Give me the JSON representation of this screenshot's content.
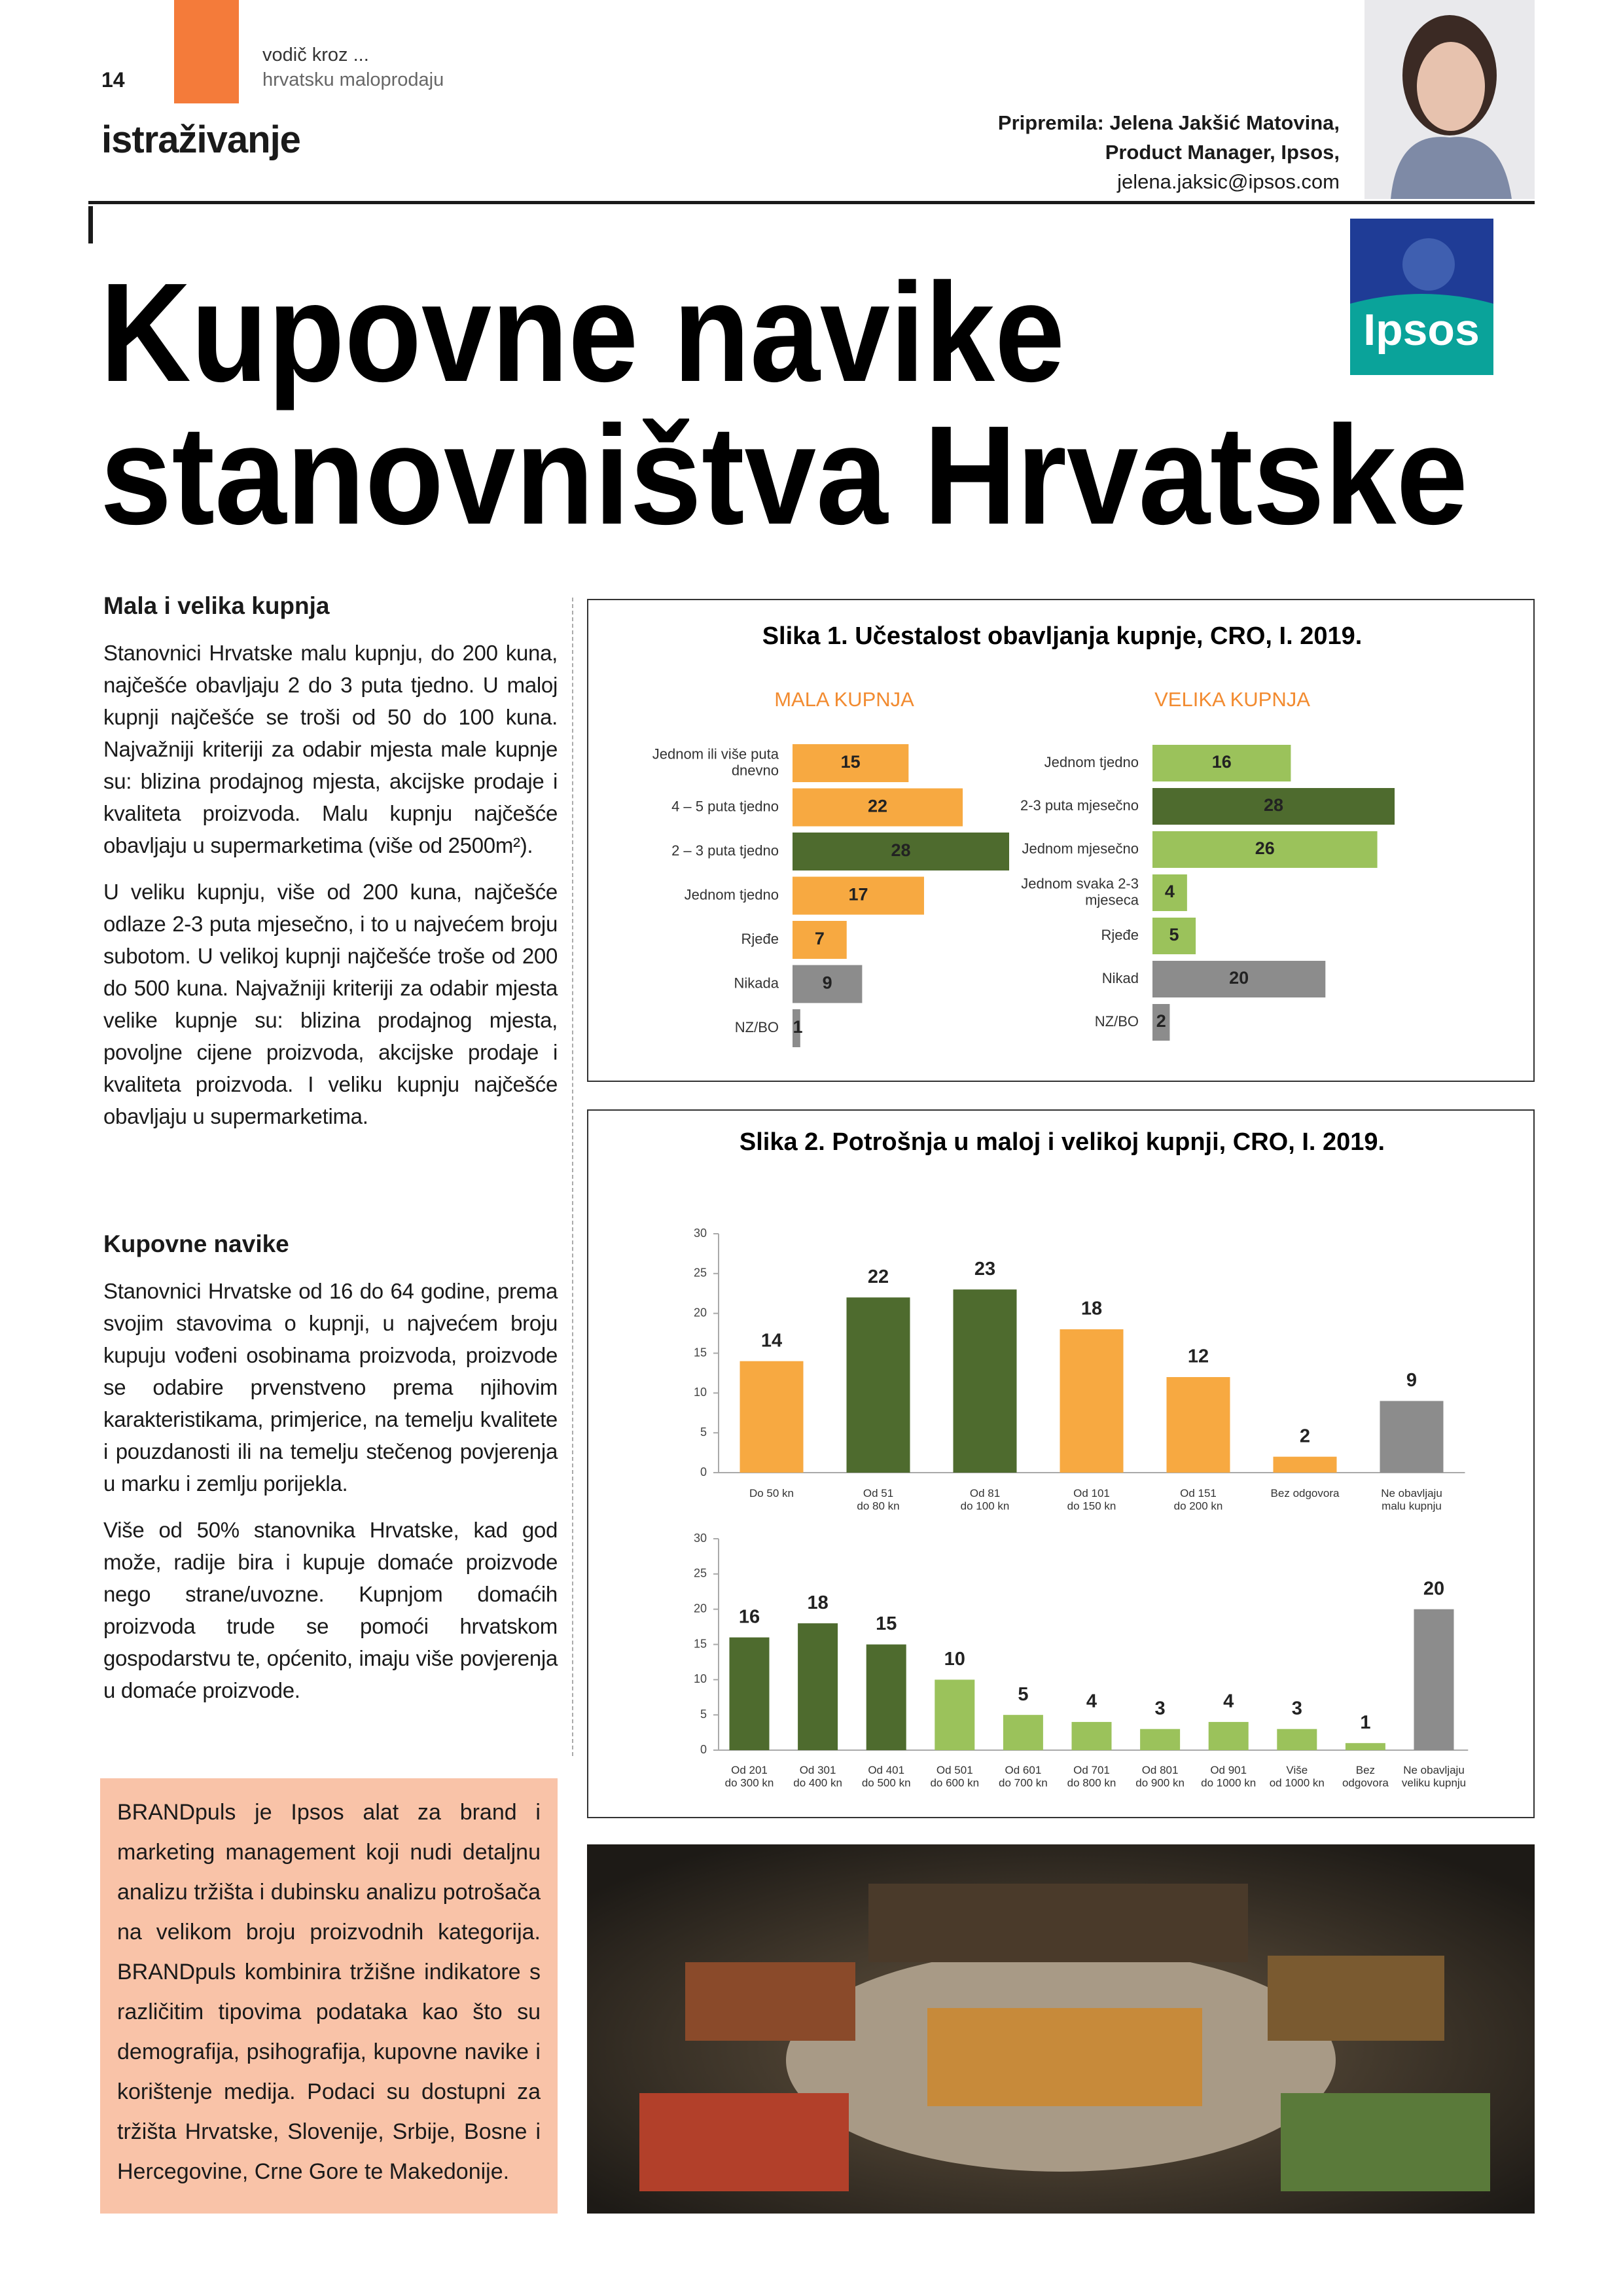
{
  "header": {
    "page_number": "14",
    "series_line1": "vodič kroz ...",
    "series_line2": "hrvatsku maloprodaju",
    "section": "istraživanje",
    "author_line1": "Pripremila: Jelena Jakšić Matovina,",
    "author_line2": "Product Manager, Ipsos,",
    "author_email": "jelena.jaksic@ipsos.com",
    "logo": "Ipsos"
  },
  "title_lines": [
    "Kupovne navike",
    "stanovništva Hrvatske"
  ],
  "article": {
    "sections": [
      {
        "heading": "Mala i velika kupnja",
        "paragraphs": [
          "Stanovnici Hrvatske malu kupnju, do 200 kuna, najčešće obavljaju 2 do 3 puta tjedno. U maloj kupnji najčešće se troši od 50 do 100 kuna. Najvažniji kriteriji za odabir mjesta male kupnje su: blizina prodajnog mjesta, akcijske prodaje i kvaliteta proizvoda. Malu kupnju najčešće obavljaju u supermarketima (više od 2500m²).",
          "U veliku kupnju, više od 200 kuna, najčešće odlaze 2-3 puta mjesečno, i to u najvećem broju subotom. U velikoj kupnji najčešće troše od 200 do 500 kuna. Najvažniji kriteriji za odabir mjesta velike kupnje su: blizina prodajnog mjesta, povoljne cijene proizvoda, akcijske prodaje i kvaliteta proizvoda. I veliku kupnju najčešće obavljaju u supermarketima."
        ]
      },
      {
        "heading": "Kupovne navike",
        "paragraphs": [
          "Stanovnici Hrvatske od 16 do 64 godine, prema svojim stavovima o kupnji, u najvećem broju kupuju vođeni osobinama proizvoda, proizvode se odabire prvenstveno prema njihovim karakteristikama, primjerice, na temelju kvalitete i pouzdanosti ili na temelju stečenog povjerenja u marku i zemlju porijekla.",
          "Više od 50% stanovnika Hrvatske, kad god može, radije bira i kupuje domaće proizvode nego strane/uvozne. Kupnjom domaćih proizvoda trude se pomoći hrvatskom gospodarstvu te, općenito, imaju više povjerenja u domaće proizvode."
        ]
      }
    ]
  },
  "sidebar": "BRANDpuls je Ipsos alat za brand i marketing management koji nudi detaljnu analizu tržišta i dubinsku analizu potrošača na velikom broju proizvodnih kategorija. BRANDpuls kombinira tržišne indikatore s različitim tipovima podataka kao što su demografija, psihografija, kupovne navike i korištenje medija. Podaci su dostupni za tržišta Hrvatske, Slovenije, Srbije, Bosne i Hercegovine, Crne Gore te Makedonije.",
  "chart_data": [
    {
      "type": "barh",
      "title": "Slika 1. Učestalost obavljanja kupnje, CRO, I. 2019.",
      "subtitle": "MALA KUPNJA",
      "categories": [
        "Jednom ili više puta\ndnevno",
        "4 – 5 puta tjedno",
        "2 – 3 puta tjedno",
        "Jednom tjedno",
        "Rjeđe",
        "Nikada",
        "NZ/BO"
      ],
      "values": [
        15,
        22,
        28,
        17,
        7,
        9,
        1
      ],
      "colors": [
        "#f7a941",
        "#f7a941",
        "#4e6b2e",
        "#f7a941",
        "#f7a941",
        "#8c8c8c",
        "#8c8c8c"
      ]
    },
    {
      "type": "barh",
      "subtitle": "VELIKA KUPNJA",
      "categories": [
        "Jednom tjedno",
        "2-3 puta mjesečno",
        "Jednom mjesečno",
        "Jednom svaka 2-3\nmjeseca",
        "Rjeđe",
        "Nikad",
        "NZ/BO"
      ],
      "values": [
        16,
        28,
        26,
        4,
        5,
        20,
        2
      ],
      "colors": [
        "#9bc25b",
        "#4e6b2e",
        "#9bc25b",
        "#9bc25b",
        "#9bc25b",
        "#8c8c8c",
        "#8c8c8c"
      ]
    },
    {
      "type": "bar",
      "title": "Slika 2. Potrošnja u maloj i velikoj kupnji, CRO, I. 2019.",
      "categories": [
        "Do 50 kn",
        "Od 51\ndo 80 kn",
        "Od 81\ndo 100 kn",
        "Od 101\ndo 150 kn",
        "Od 151\ndo 200 kn",
        "Bez odgovora",
        "Ne obavljaju\nmalu kupnju"
      ],
      "values": [
        14,
        22,
        23,
        18,
        12,
        2,
        9
      ],
      "colors": [
        "#f7a941",
        "#4e6b2e",
        "#4e6b2e",
        "#f7a941",
        "#f7a941",
        "#f7a941",
        "#8c8c8c"
      ],
      "ylim": [
        0,
        30
      ],
      "yticks": [
        0,
        5,
        10,
        15,
        20,
        25,
        30
      ]
    },
    {
      "type": "bar",
      "categories": [
        "Od 201\ndo 300 kn",
        "Od 301\ndo 400 kn",
        "Od 401\ndo 500 kn",
        "Od 501\ndo 600 kn",
        "Od 601\ndo 700 kn",
        "Od 701\ndo 800 kn",
        "Od 801\ndo 900 kn",
        "Od 901\ndo 1000 kn",
        "Više\nod 1000 kn",
        "Bez\nodgovora",
        "Ne obavljaju\nveliku kupnju"
      ],
      "values": [
        16,
        18,
        15,
        10,
        5,
        4,
        3,
        4,
        3,
        1,
        20
      ],
      "colors": [
        "#4e6b2e",
        "#4e6b2e",
        "#4e6b2e",
        "#9bc25b",
        "#9bc25b",
        "#9bc25b",
        "#9bc25b",
        "#9bc25b",
        "#9bc25b",
        "#9bc25b",
        "#8c8c8c"
      ],
      "ylim": [
        0,
        30
      ],
      "yticks": [
        0,
        5,
        10,
        15,
        20,
        25,
        30
      ]
    }
  ]
}
